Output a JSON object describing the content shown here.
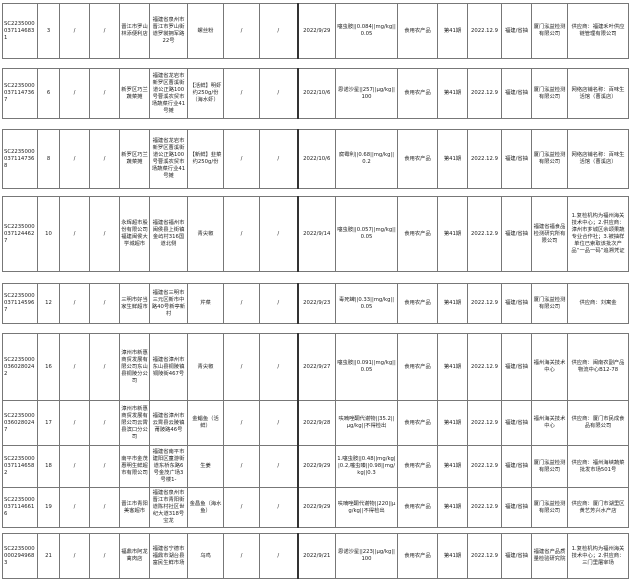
{
  "groups": [
    {
      "rows": [
        [
          "SC22350000371146831",
          "3",
          "/",
          "/",
          "晋江市罗山林添便利店",
          "福建省泉州市晋江市罗山街道罗裳拥军路22号",
          "螺丝粉",
          "/",
          "/",
          "2022/9/29",
          "噻虫胺||0.084||mg/kg||0.05",
          "食用农产品",
          "第41期",
          "2022.12.9",
          "福建/省抽",
          "厦门泓益检测有限公司",
          "供应商：福建禾叶供应链管理有限公司"
        ]
      ]
    },
    {
      "rows": [
        [
          "SC22350000371147367",
          "6",
          "/",
          "/",
          "新罗区巧兰蔬菜摊",
          "福建省龙岩市新罗区曹溪街道公正路100号曹溪农贸市场蔬菜行业41号摊",
          "【活鲜】明虾约250g/份（海水虾）",
          "/",
          "/",
          "2022/10/6",
          "恩诺沙星||257||μg/kg||100",
          "食用农产品",
          "第41期",
          "2022.12.9",
          "福建/省抽",
          "厦门泓益检测有限公司",
          "网络店铺名称：百味生活馆（曹溪店）"
        ]
      ]
    },
    {
      "rows": [
        [
          "SC22350000371147368",
          "8",
          "/",
          "/",
          "新罗区巧兰蔬菜摊",
          "福建省龙岩市新罗区曹溪街道公正路100号曹溪农贸市场蔬菜行业41号摊",
          "【新鲜】韭菜约250g/份",
          "/",
          "/",
          "2022/10/6",
          "腐霉利||0.68||mg/kg||0.2",
          "食用农产品",
          "第41期",
          "2022.12.9",
          "福建/省抽",
          "厦门泓益检测有限公司",
          "网络店铺名称：百味生活馆（曹溪店）"
        ]
      ]
    },
    {
      "rows": [
        [
          "SC22350000371244627",
          "10",
          "/",
          "/",
          "永辉超市股份有限公司福建闽侯大学城超市",
          "福建省福州市闽侯县上街镇金屿村316国道北侧",
          "青尖椒",
          "/",
          "/",
          "2022/9/14",
          "噻虫胺||0.057||mg/kg||0.05",
          "食用农产品",
          "第41期",
          "2022.12.9",
          "福建/省抽",
          "福建省福食品检测研究所有限公司",
          "1.复检机构为福州海关技术中心；2.供应商：漳州市芗城区余颂果蔬专业合作社；3.被抽样单位已索取该批次产品“一品一码”追溯凭证"
        ]
      ]
    },
    {
      "rows": [
        [
          "SC22350000371145967",
          "12",
          "/",
          "/",
          "三明市好当家生鲜超市",
          "福建省三明市三元区新市中路40号新亭新村",
          "芹菜",
          "/",
          "/",
          "2022/9/23",
          "毒死蜱||0.33||mg/kg||0.05",
          "食用农产品",
          "第41期",
          "2022.12.9",
          "福建/省抽",
          "厦门泓益检测有限公司",
          "供应商：刘寓金"
        ]
      ]
    },
    {
      "rows": [
        [
          "SC22350000360280242",
          "16",
          "/",
          "/",
          "漳州市新惠商贸发展有限公司东山县铜陵分公司",
          "福建省漳州市东山县铜陵镇铜陵街467号",
          "青尖椒",
          "/",
          "/",
          "2022/9/27",
          "噻虫胺||0.091||mg/kg||0.05",
          "食用农产品",
          "第41期",
          "2022.12.9",
          "福建/省抽",
          "福州海关技术中心",
          "供应商：闽南农副产品物流中心B12-78"
        ],
        [
          "SC22350000360280247",
          "17",
          "/",
          "/",
          "漳州市新惠商贸发展有限公司云霄县滨口分公司",
          "福建省漳州市云霄县云陵镇莆陂路46号",
          "金鲳鱼（活鲜）",
          "/",
          "/",
          "2022/9/28",
          "呋喃唑酮代谢物||35.2||μg/kg||不得检出",
          "食用农产品",
          "第41期",
          "2022.12.9",
          "福建/省抽",
          "福州海关技术中心",
          "供应商：厦门市民成食品有限公司"
        ],
        [
          "SC22350000371146582",
          "18",
          "/",
          "/",
          "南平市金茂惠明生鲜超市有限公司",
          "福建省南平市建阳区童游街道东桥东路6号金茂广场3号楼1-",
          "生姜",
          "/",
          "/",
          "2022/9/29",
          "1.噻虫胺||0.48||mg/kg||0.2,噻虫嗪||0.98||mg/kg||0.3",
          "食用农产品",
          "第41期",
          "2022.12.9",
          "福建/省抽",
          "厦门泓益检测有限公司",
          "供应商：福州海峡蔬菜批发市场501号"
        ],
        [
          "SC22350000371146616",
          "19",
          "/",
          "/",
          "晋江市青阳美客超市",
          "福建省泉州市晋江市青阳街道陈村社区世纪大道318号宝龙",
          "金昌鱼（海水鱼）",
          "/",
          "/",
          "2022/9/29",
          "呋喃唑酮代谢物||220||μg/kg||不得检出",
          "食用农产品",
          "第41期",
          "2022.12.9",
          "福建/省抽",
          "厦门泓益检测有限公司",
          "供应商：厦门市湖里区黄艺芳兴水产店"
        ]
      ]
    },
    {
      "rows": [
        [
          "SC22350000002949683",
          "21",
          "/",
          "/",
          "福鼎市阿龙禽肉店",
          "福建省宁德市福鼎市湖台县富民生鲜市场",
          "乌鸡",
          "/",
          "/",
          "2022/9/21",
          "恩诺沙星||223||μg/kg||100",
          "食用农产品",
          "第41期",
          "2022.12.9",
          "福建/省抽",
          "福建省产品质量检验研究院",
          "1.复检机构为福州海关技术中心；2.供应商：三门里屠宰场"
        ]
      ]
    }
  ]
}
